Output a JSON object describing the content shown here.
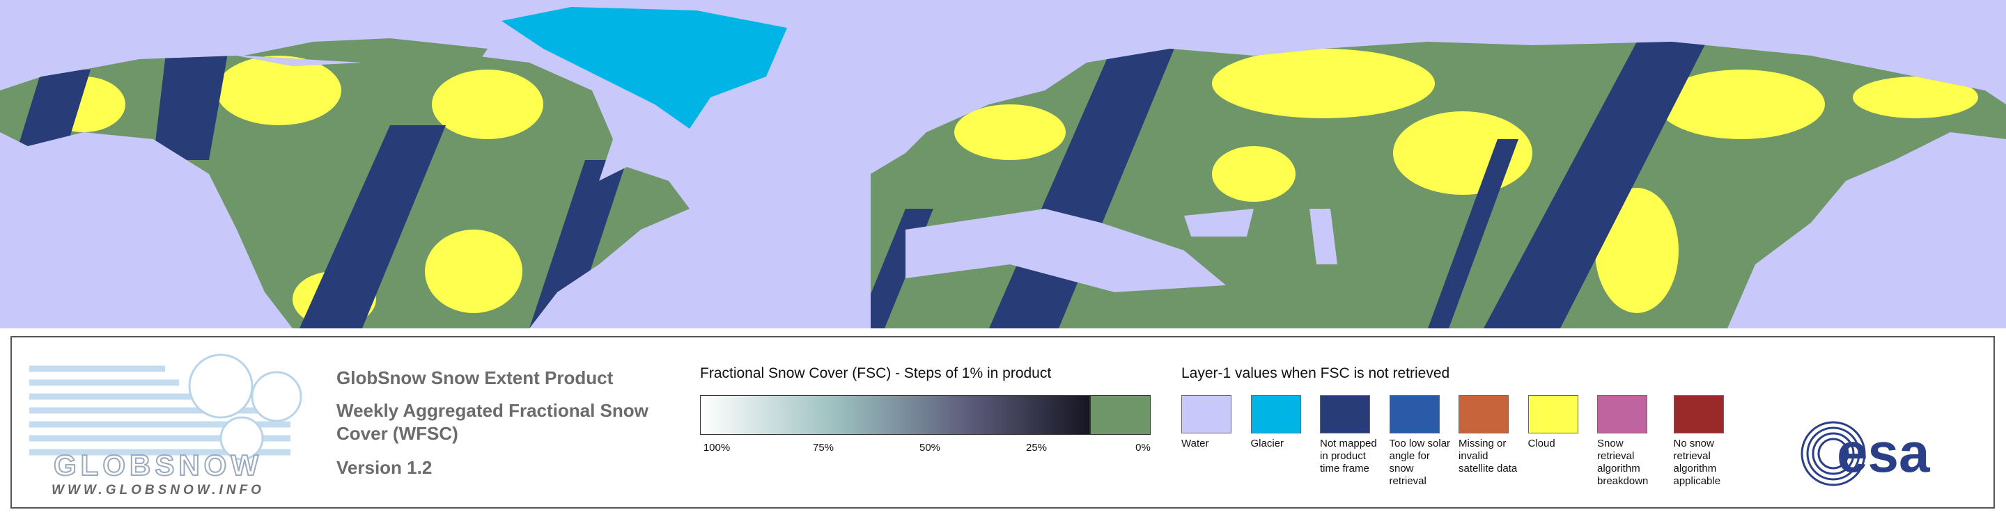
{
  "logo": {
    "name": "GLOBSNOW",
    "url": "WWW.GLOBSNOW.INFO"
  },
  "product": {
    "title": "GlobSnow Snow Extent Product",
    "subtitle": "Weekly Aggregated Fractional Snow Cover (WFSC)",
    "version": "Version 1.2"
  },
  "fsc_legend": {
    "title": "Fractional Snow Cover (FSC) - Steps of 1% in product",
    "ticks": [
      "100%",
      "75%",
      "50%",
      "25%",
      "0%"
    ]
  },
  "layer1_legend": {
    "title": "Layer-1 values when FSC is not retrieved",
    "items": [
      {
        "label": "Water",
        "color": "#c8c8fa"
      },
      {
        "label": "Glacier",
        "color": "#00b4e6"
      },
      {
        "label": "Not mapped in product time frame",
        "color": "#283c78"
      },
      {
        "label": "Too low solar angle for snow retrieval",
        "color": "#2a5aa8"
      },
      {
        "label": "Missing or invalid satellite data",
        "color": "#c8643c"
      },
      {
        "label": "Cloud",
        "color": "#ffff50"
      },
      {
        "label": "Snow retrieval algorithm breakdown",
        "color": "#c064a0"
      },
      {
        "label": "No snow retrieval algorithm applicable",
        "color": "#9a2a2a"
      }
    ]
  },
  "agency": "esa"
}
